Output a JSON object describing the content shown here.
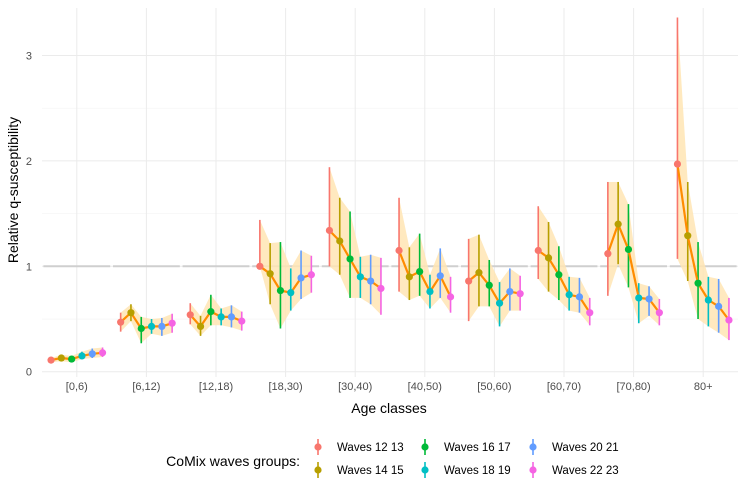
{
  "chart_data": {
    "type": "line",
    "title": "",
    "xlabel": "Age classes",
    "ylabel": "Relative q-susceptibility",
    "categories": [
      "[0,6)",
      "[6,12)",
      "[12,18)",
      "[18,30)",
      "[30,40)",
      "[40,50)",
      "[50,60)",
      "[60,70)",
      "[70,80)",
      "80+"
    ],
    "ylim": [
      -0.05,
      3.45
    ],
    "yticks": [
      0,
      1,
      2,
      3
    ],
    "reference_line": 1,
    "grid": true,
    "legend": {
      "title": "CoMix waves groups:",
      "position": "bottom"
    },
    "series": [
      {
        "name": "Waves 12 13",
        "color": "#F8766D",
        "values": [
          0.11,
          0.47,
          0.54,
          1.0,
          1.34,
          1.15,
          0.86,
          1.15,
          1.12,
          1.97
        ],
        "lower": [
          0.09,
          0.38,
          0.45,
          1.0,
          1.0,
          0.76,
          0.48,
          0.88,
          0.72,
          1.07
        ],
        "upper": [
          0.13,
          0.56,
          0.65,
          1.44,
          1.94,
          1.65,
          1.26,
          1.57,
          1.8,
          3.36
        ]
      },
      {
        "name": "Waves 14 15",
        "color": "#B79F00",
        "values": [
          0.13,
          0.56,
          0.43,
          0.93,
          1.24,
          0.9,
          0.94,
          1.08,
          1.4,
          1.29
        ],
        "lower": [
          0.1,
          0.48,
          0.34,
          0.64,
          0.92,
          0.68,
          0.62,
          0.76,
          1.02,
          0.86
        ],
        "upper": [
          0.16,
          0.64,
          0.53,
          1.22,
          1.65,
          1.18,
          1.3,
          1.42,
          1.8,
          1.8
        ]
      },
      {
        "name": "Waves 16 17",
        "color": "#00BA38",
        "values": [
          0.12,
          0.41,
          0.57,
          0.77,
          1.07,
          0.95,
          0.82,
          0.92,
          1.16,
          0.84
        ],
        "lower": [
          0.09,
          0.27,
          0.44,
          0.41,
          0.7,
          0.72,
          0.62,
          0.68,
          0.8,
          0.5
        ],
        "upper": [
          0.15,
          0.52,
          0.73,
          1.23,
          1.52,
          1.31,
          1.06,
          1.19,
          1.59,
          1.23
        ]
      },
      {
        "name": "Waves 18 19",
        "color": "#00BFC4",
        "values": [
          0.15,
          0.43,
          0.52,
          0.75,
          0.9,
          0.76,
          0.65,
          0.73,
          0.7,
          0.68
        ],
        "lower": [
          0.12,
          0.36,
          0.44,
          0.58,
          0.7,
          0.6,
          0.43,
          0.58,
          0.46,
          0.43
        ],
        "upper": [
          0.19,
          0.5,
          0.6,
          0.98,
          1.09,
          0.92,
          0.85,
          0.9,
          0.84,
          0.9
        ]
      },
      {
        "name": "Waves 20 21",
        "color": "#619CFF",
        "values": [
          0.17,
          0.43,
          0.52,
          0.89,
          0.86,
          0.91,
          0.76,
          0.71,
          0.69,
          0.62
        ],
        "lower": [
          0.13,
          0.34,
          0.42,
          0.69,
          0.64,
          0.7,
          0.58,
          0.56,
          0.53,
          0.37
        ],
        "upper": [
          0.22,
          0.51,
          0.63,
          1.15,
          1.11,
          1.17,
          0.98,
          0.89,
          0.81,
          0.88
        ]
      },
      {
        "name": "Waves 22 23",
        "color": "#F564E3",
        "values": [
          0.18,
          0.46,
          0.48,
          0.92,
          0.79,
          0.71,
          0.74,
          0.56,
          0.56,
          0.49
        ],
        "lower": [
          0.14,
          0.37,
          0.39,
          0.75,
          0.54,
          0.56,
          0.58,
          0.44,
          0.44,
          0.3
        ],
        "upper": [
          0.23,
          0.55,
          0.57,
          1.1,
          1.08,
          0.9,
          0.91,
          0.7,
          0.69,
          0.7
        ]
      }
    ],
    "trend": {
      "line_color": "#FF8C00",
      "ribbon_color": "#FFE5B4"
    }
  }
}
